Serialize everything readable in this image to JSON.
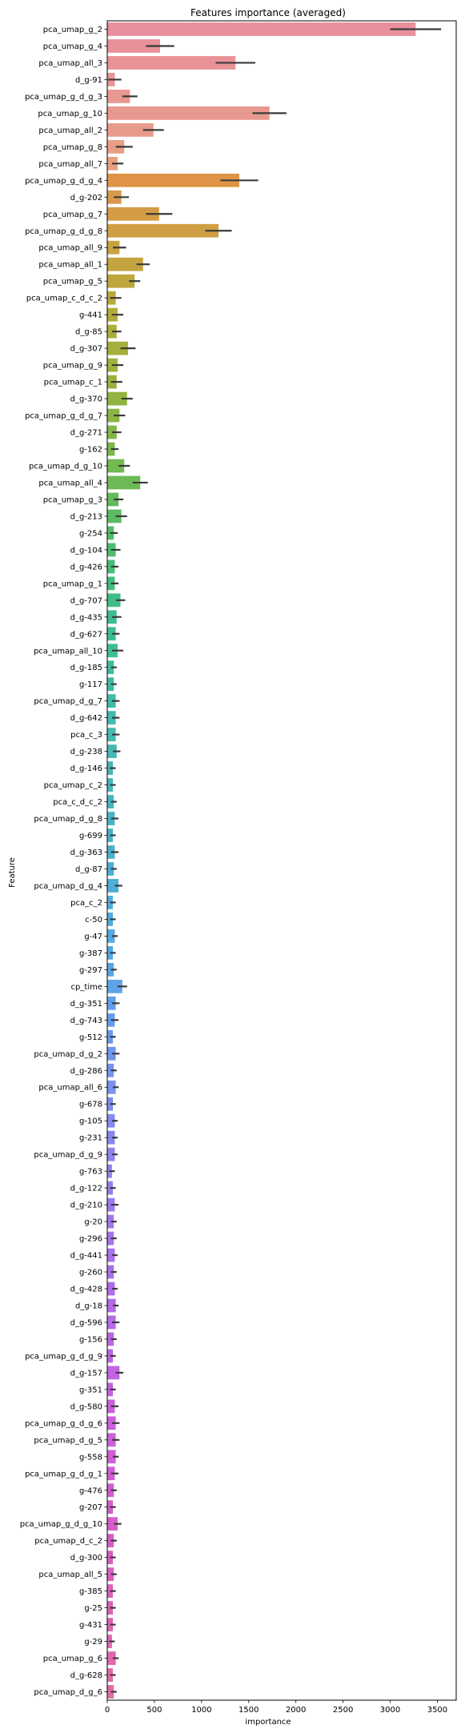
{
  "chart_data": {
    "type": "bar",
    "orientation": "horizontal",
    "title": "Features importance (averaged)",
    "xlabel": "importance",
    "ylabel": "Feature",
    "xlim": [
      0,
      3700
    ],
    "xticks": [
      0,
      500,
      1000,
      1500,
      2000,
      2500,
      3000,
      3500
    ],
    "grid": false,
    "legend": "none",
    "error_bar_color": "#3b3b3b",
    "categories": [
      "pca_umap_g_2",
      "pca_umap_g_4",
      "pca_umap_all_3",
      "d_g-91",
      "pca_umap_g_d_g_3",
      "pca_umap_g_10",
      "pca_umap_all_2",
      "pca_umap_g_8",
      "pca_umap_all_7",
      "pca_umap_g_d_g_4",
      "d_g-202",
      "pca_umap_g_7",
      "pca_umap_g_d_g_8",
      "pca_umap_all_9",
      "pca_umap_all_1",
      "pca_umap_g_5",
      "pca_umap_c_d_c_2",
      "g-441",
      "d_g-85",
      "d_g-307",
      "pca_umap_g_9",
      "pca_umap_c_1",
      "d_g-370",
      "pca_umap_g_d_g_7",
      "d_g-271",
      "g-162",
      "pca_umap_d_g_10",
      "pca_umap_all_4",
      "pca_umap_g_3",
      "d_g-213",
      "g-254",
      "d_g-104",
      "d_g-426",
      "pca_umap_g_1",
      "d_g-707",
      "d_g-435",
      "d_g-627",
      "pca_umap_all_10",
      "d_g-185",
      "g-117",
      "pca_umap_d_g_7",
      "d_g-642",
      "pca_c_3",
      "d_g-238",
      "d_g-146",
      "pca_umap_c_2",
      "pca_c_d_c_2",
      "pca_umap_d_g_8",
      "g-699",
      "d_g-363",
      "d_g-87",
      "pca_umap_d_g_4",
      "pca_c_2",
      "c-50",
      "g-47",
      "g-387",
      "g-297",
      "cp_time",
      "d_g-351",
      "d_g-743",
      "g-512",
      "pca_umap_d_g_2",
      "d_g-286",
      "pca_umap_all_6",
      "g-678",
      "g-105",
      "g-231",
      "pca_umap_d_g_9",
      "g-763",
      "d_g-122",
      "d_g-210",
      "g-20",
      "g-296",
      "d_g-441",
      "g-260",
      "d_g-428",
      "d_g-18",
      "d_g-596",
      "g-156",
      "pca_umap_g_d_g_9",
      "d_g-157",
      "g-351",
      "d_g-580",
      "pca_umap_g_d_g_6",
      "pca_umap_d_g_5",
      "g-558",
      "pca_umap_g_d_g_1",
      "g-476",
      "g-207",
      "pca_umap_g_d_g_10",
      "pca_umap_d_c_2",
      "d_g-300",
      "pca_umap_all_5",
      "g-385",
      "g-25",
      "g-431",
      "g-29",
      "pca_umap_g_6",
      "d_g-628",
      "pca_umap_d_g_6"
    ],
    "values": [
      3270,
      560,
      1360,
      80,
      240,
      1720,
      490,
      180,
      110,
      1400,
      150,
      550,
      1180,
      130,
      380,
      290,
      90,
      110,
      100,
      220,
      110,
      100,
      210,
      130,
      100,
      80,
      180,
      350,
      120,
      150,
      70,
      90,
      80,
      80,
      140,
      100,
      90,
      110,
      70,
      70,
      90,
      90,
      90,
      100,
      60,
      60,
      70,
      80,
      60,
      80,
      70,
      120,
      60,
      60,
      80,
      60,
      70,
      160,
      90,
      80,
      60,
      90,
      70,
      90,
      60,
      80,
      80,
      80,
      50,
      60,
      80,
      70,
      70,
      80,
      70,
      80,
      90,
      90,
      70,
      60,
      130,
      60,
      80,
      90,
      90,
      90,
      80,
      70,
      60,
      110,
      70,
      60,
      70,
      60,
      60,
      60,
      50,
      90,
      60,
      70
    ],
    "errors": [
      270,
      150,
      210,
      70,
      80,
      180,
      110,
      90,
      60,
      200,
      80,
      140,
      140,
      70,
      70,
      60,
      60,
      60,
      50,
      80,
      60,
      60,
      60,
      60,
      50,
      40,
      60,
      80,
      50,
      60,
      40,
      50,
      40,
      40,
      50,
      50,
      40,
      60,
      30,
      30,
      40,
      40,
      40,
      40,
      30,
      30,
      30,
      40,
      30,
      40,
      30,
      40,
      30,
      30,
      30,
      30,
      30,
      50,
      40,
      40,
      30,
      40,
      30,
      30,
      30,
      30,
      30,
      30,
      30,
      30,
      40,
      30,
      30,
      30,
      30,
      30,
      30,
      40,
      30,
      30,
      40,
      30,
      40,
      40,
      40,
      30,
      40,
      30,
      30,
      40,
      30,
      30,
      30,
      30,
      30,
      30,
      30,
      30,
      30,
      30
    ],
    "colors": [
      "#e8909c",
      "#e8919a",
      "#e89397",
      "#e89594",
      "#e89791",
      "#e8998f",
      "#e89b8b",
      "#e89d86",
      "#e8a082",
      "#de9444",
      "#d9984b",
      "#d49c46",
      "#cf9f43",
      "#c9a240",
      "#c4a43e",
      "#bea63c",
      "#b8a93b",
      "#b2ab3b",
      "#acad3b",
      "#a5af3c",
      "#9fb03d",
      "#98b23f",
      "#91b341",
      "#8ab544",
      "#83b648",
      "#7cb74c",
      "#74b851",
      "#6cb956",
      "#64ba5c",
      "#5cbb62",
      "#54bc68",
      "#4dbd6f",
      "#47bd76",
      "#42bd7d",
      "#3fbd84",
      "#3ebd8b",
      "#3ebc91",
      "#3fbc97",
      "#40bb9d",
      "#41bba2",
      "#42baa7",
      "#43b9ac",
      "#44b9b0",
      "#45b8b4",
      "#46b7b8",
      "#47b6bd",
      "#48b5c1",
      "#49b4c5",
      "#4ab3c9",
      "#4bb1cd",
      "#4db0d1",
      "#4eaed5",
      "#50add9",
      "#52abdc",
      "#54a9df",
      "#57a7e2",
      "#5aa5e5",
      "#5ea2e7",
      "#62a0e9",
      "#669dea",
      "#6b9aeb",
      "#7097ec",
      "#7594ed",
      "#7a91ed",
      "#7f8ded",
      "#848aed",
      "#8987ed",
      "#8e84ed",
      "#9381ed",
      "#987eec",
      "#9c7bec",
      "#a178eb",
      "#a575ea",
      "#a972e9",
      "#ad70e8",
      "#b16de7",
      "#b46be6",
      "#b869e5",
      "#bb67e3",
      "#be66e2",
      "#c164e0",
      "#c463de",
      "#c762dc",
      "#c961da",
      "#cc60d8",
      "#ce5fd5",
      "#d05fd2",
      "#d25ecf",
      "#d45ecc",
      "#d55ec9",
      "#d75ec6",
      "#d85fc2",
      "#da60bf",
      "#db61bb",
      "#dc62b8",
      "#dd64b4",
      "#de66b1",
      "#df68ad",
      "#e06aa9",
      "#e16ca6"
    ]
  }
}
